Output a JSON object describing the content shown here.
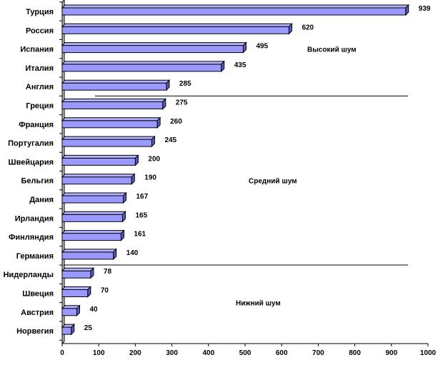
{
  "chart_data": {
    "type": "bar",
    "orientation": "horizontal",
    "categories": [
      "Турция",
      "Россия",
      "Испания",
      "Италия",
      "Англия",
      "Греция",
      "Франция",
      "Португалия",
      "Швейцария",
      "Бельгия",
      "Дания",
      "Ирландия",
      "Финляндия",
      "Германия",
      "Нидерланды",
      "Швеция",
      "Австрия",
      "Норвегия"
    ],
    "values": [
      939,
      620,
      495,
      435,
      285,
      275,
      260,
      245,
      200,
      190,
      167,
      165,
      161,
      140,
      78,
      70,
      40,
      25
    ],
    "data_labels": [
      "939",
      "620",
      "495",
      "435",
      "285",
      "275",
      "260",
      "245",
      "200",
      "190",
      "167",
      "165",
      "161",
      "140",
      "78",
      "70",
      "40",
      "25"
    ],
    "xlim": [
      0,
      1000
    ],
    "x_ticks": [
      0,
      100,
      200,
      300,
      400,
      500,
      600,
      700,
      800,
      900,
      1000
    ],
    "x_tick_labels": [
      "0",
      "100",
      "200",
      "300",
      "400",
      "500",
      "600",
      "700",
      "800",
      "900",
      "1000"
    ],
    "grid": false,
    "legend": "none",
    "bar_color": "#9999ff",
    "bar_edge_color": "#000000",
    "bar_side_color": "#5c5cb8",
    "zones": [
      {
        "label": "Высокий шум",
        "first_index": 0,
        "last_index": 4
      },
      {
        "label": "Средний шум",
        "first_index": 5,
        "last_index": 13
      },
      {
        "label": "Нижний шум",
        "first_index": 14,
        "last_index": 17
      }
    ]
  }
}
